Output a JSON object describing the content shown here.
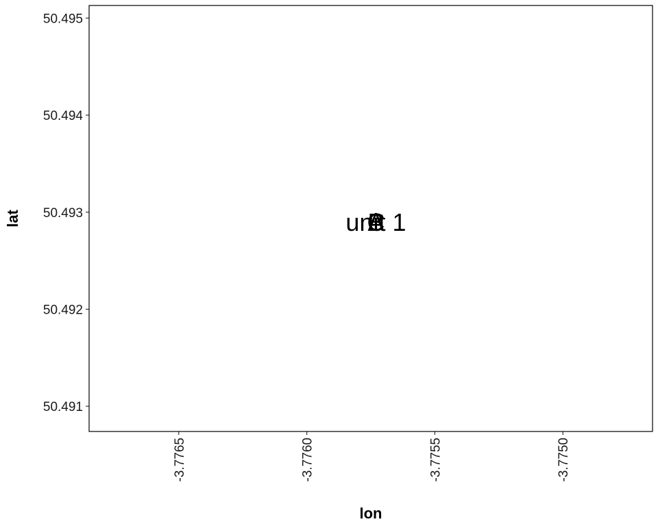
{
  "chart_data": {
    "type": "scatter",
    "xlabel": "lon",
    "ylabel": "lat",
    "xlim": [
      -3.77685,
      -3.77465
    ],
    "ylim": [
      50.49074,
      50.49513
    ],
    "xticks": [
      -3.7765,
      -3.776,
      -3.7755,
      -3.775
    ],
    "xtick_labels": [
      "-3.7765",
      "-3.7760",
      "-3.7755",
      "-3.7750"
    ],
    "yticks": [
      50.491,
      50.492,
      50.493,
      50.494,
      50.495
    ],
    "ytick_labels": [
      "50.491",
      "50.492",
      "50.493",
      "50.494",
      "50.495"
    ],
    "grid": false,
    "legend": "none",
    "points": [
      {
        "x": -3.77573,
        "y": 50.4929,
        "label": "unit 1"
      },
      {
        "x": -3.77573,
        "y": 50.4929,
        "label": "A"
      },
      {
        "x": -3.77573,
        "y": 50.4929,
        "label": "B"
      },
      {
        "x": -3.77573,
        "y": 50.4929,
        "label": "C"
      }
    ],
    "colors": {
      "text": "#000000",
      "tick_text": "#1a1a1a",
      "panel_border": "#000000"
    }
  }
}
